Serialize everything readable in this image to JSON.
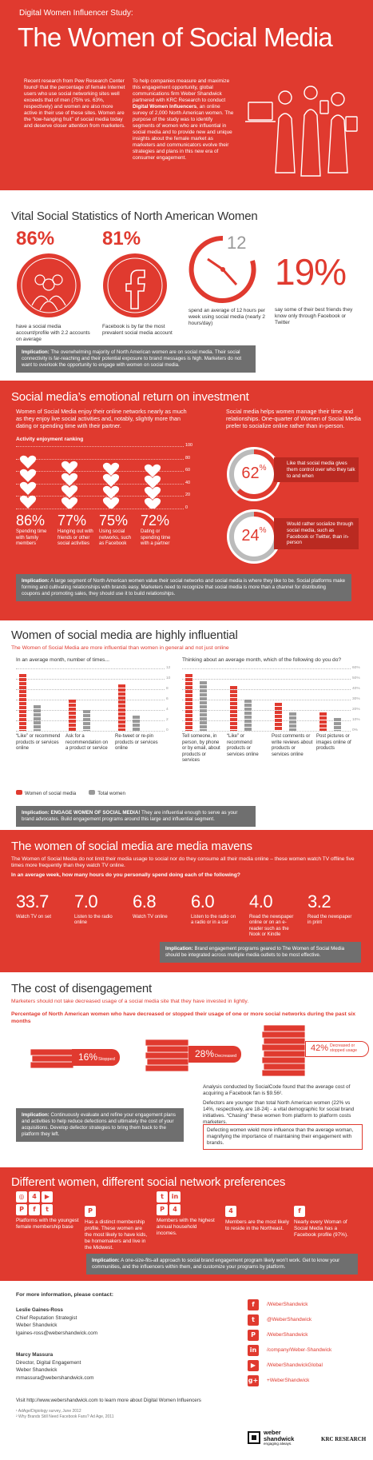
{
  "header": {
    "kicker": "Digital Women Influencer Study:",
    "title": "The Women of Social Media",
    "col1": "Recent research from Pew Research Center found¹ that the percentage of female Internet users who use social networking sites well exceeds that of men (75% vs. 63%, respectively) and women are also more active in their use of these sites. Women are the “low-hanging fruit” of social media today and deserve closer attention from marketers.",
    "col2a": "To help companies measure and maximize this engagement opportunity, global communications firm Weber Shandwick partnered with KRC Research to conduct ",
    "col2b": "Digital Women Influencers",
    "col2c": ", an online survey of 2,000 North American women. The purpose of the study was to identify segments of women who are influential in social media and to provide new and unique insights about the female market as marketers and communicators evolve their strategies and plans in this new era of consumer engagement."
  },
  "vital": {
    "title": "Vital Social Statistics of North American Women",
    "stat1": {
      "value": "86%",
      "text": "have a social media account/profile with 2.2 accounts on average"
    },
    "stat2": {
      "value": "81%",
      "text": "Facebook is by far the most prevalent social media account"
    },
    "stat3": {
      "value": "12",
      "text": "spend an average of 12 hours per week using social media (nearly 2 hours/day)"
    },
    "stat4": {
      "value": "19%",
      "text": "say some of their best friends they know only through Facebook or Twitter"
    },
    "implication_label": "Implication:",
    "implication": " The overwhelming majority of North American women are on social media. Their social connectivity is far-reaching and their potential exposure to brand messages is high. Marketers do not want to overlook the opportunity to engage with women on social media."
  },
  "roi": {
    "title": "Social media’s emotional return on investment",
    "left_text": "Women of Social Media enjoy their online networks nearly as much as they enjoy live social activities and, notably, slightly more than dating or spending time with their partner.",
    "chart_label": "Activity enjoyment ranking",
    "ticks": [
      "100",
      "80",
      "60",
      "40",
      "20",
      "0"
    ],
    "right_text": "Social media helps women manage their time and relationships. One-quarter of Women of Social Media prefer to socialize online rather than in-person.",
    "donut1": {
      "value": "62",
      "pct": "%",
      "text": "Like that social media gives them control over who they talk to and when"
    },
    "donut2": {
      "value": "24",
      "pct": "%",
      "text": "Would rather socialize through social media, such as Facebook or Twitter, than in-person"
    },
    "implication_label": "Implication:",
    "implication": " A large segment of North American women value their social networks and social media is where they like to be. Social platforms make forming and cultivating relationships with brands easy. Marketers need to recognize that social media is more than a channel for distributing coupons and promoting sales, they should use it to build relationships."
  },
  "influential": {
    "title": "Women of social media are highly influential",
    "subtitle": "The Women of Social Media are more influential than women in general and not just online",
    "left_q": "In an average month, number of times...",
    "right_q": "Thinking about an average month, which of the following do you do?",
    "left_ticks": [
      "12",
      "10",
      "8",
      "6",
      "4",
      "2",
      "0"
    ],
    "right_ticks": [
      "60%",
      "50%",
      "40%",
      "30%",
      "20%",
      "10%",
      "0%"
    ],
    "legend_wosm": "Women of social media",
    "legend_total": "Total women",
    "implication_label": "Implication: ENGAGE WOMEN OF SOCIAL MEDIA!",
    "implication": " They are influential enough to serve as your brand advocates. Build engagement programs around this large and influential segment."
  },
  "chart_data": [
    {
      "type": "bar",
      "series": [
        {
          "name": "Women of social media",
          "values": [
            86,
            77,
            75,
            72
          ]
        }
      ],
      "categories": [
        "Spending time with family members",
        "Hanging out with friends or other social activities",
        "Using social networks, such as Facebook",
        "Dating or spending time with a partner"
      ],
      "ylabel": "Activity enjoyment ranking",
      "ylim": [
        0,
        100
      ]
    },
    {
      "type": "bar",
      "categories": [
        "“Like” or recommend products or services online",
        "Ask for a recommendation on a product or service",
        "Re-tweet or re-pin products or services online"
      ],
      "series": [
        {
          "name": "Women of social media",
          "values": [
            11,
            6,
            9
          ]
        },
        {
          "name": "Total women",
          "values": [
            5,
            4,
            3
          ]
        }
      ],
      "ylim": [
        0,
        12
      ]
    },
    {
      "type": "bar",
      "categories": [
        "Tell someone, in person, by phone or by email, about products or services",
        "“Like” or recommend products or services online",
        "Post comments or write reviews about products or services online",
        "Post pictures or images online of products"
      ],
      "series": [
        {
          "name": "Women of social media",
          "values": [
            55,
            43,
            27,
            18
          ]
        },
        {
          "name": "Total women",
          "values": [
            48,
            30,
            18,
            12
          ]
        }
      ],
      "ylim": [
        0,
        60
      ]
    }
  ],
  "mavens": {
    "title": "The women of social media are media mavens",
    "subtitle": "The Women of Social Media do not limit their media usage to social nor do they consume all their media online – these women watch TV offline five times more frequently than they watch TV online.",
    "question": "In an average week, how many hours do you personally spend doing each of the following?",
    "items": [
      {
        "value": "33.7",
        "text": "Watch TV on set"
      },
      {
        "value": "7.0",
        "text": "Listen to the radio online"
      },
      {
        "value": "6.8",
        "text": "Watch TV online"
      },
      {
        "value": "6.0",
        "text": "Listen to the radio on a radio or in a car"
      },
      {
        "value": "4.0",
        "text": "Read the newspaper online or on an e-reader such as the Nook or Kindle"
      },
      {
        "value": "3.2",
        "text": "Read the newspaper in print"
      }
    ],
    "implication_label": "Implication:",
    "implication": " Brand engagement programs geared to The Women of Social Media should be integrated across multiple media outlets to be most effective."
  },
  "cost": {
    "title": "The cost of disengagement",
    "subtitle": "Marketers should not take decreased usage of a social media site that they have invested in lightly.",
    "question": "Percentage of North American women who have decreased or stopped their usage of one or more social networks during the past six months",
    "tag1": {
      "value": "16%",
      "label": "Stopped"
    },
    "tag2": {
      "value": "28%",
      "label": "Decreased"
    },
    "tag3": {
      "value": "42%",
      "label": "Decreased or stopped usage"
    },
    "analysis": "Analysis conducted by SocialCode found that the average cost of acquiring a Facebook fan is $9.56².",
    "defectors": "Defectors are younger than total North American women (22% vs 14%, respectively, are 18-24) - a vital demographic for social brand initiatives. “Chasing” these women from platform to platform costs marketers.",
    "quote": "Defecting women wield more influence than the average woman, magnifying the importance of maintaining their engagement with brands.",
    "implication_label": "Implication:",
    "implication": " Continuously evaluate and refine your engagement plans and activities to help reduce defections and ultimately the cost of your acquisitions. Develop defector strategies to bring them back to the platform they left."
  },
  "prefs": {
    "title": "Different women, different social network preferences",
    "items": [
      {
        "text": "Platforms with the youngest female membership base"
      },
      {
        "text": "Has a distinct membership profile. These women are the most likely to have kids, be homemakers and live in the Midwest."
      },
      {
        "text": "Members with the highest annual household incomes."
      },
      {
        "text": "Members are the most likely to reside in the Northeast."
      },
      {
        "text": "Nearly every Woman of Social Media has a Facebook profile (97%)."
      }
    ],
    "implication_label": "Implication:",
    "implication": " A one-size-fits-all approach to social brand engagement program likely won’t work. Get to know your communities, and the influencers within them, and customize your programs by platform."
  },
  "footer": {
    "contact_label": "For more information, please contact:",
    "person1_name": "Leslie Gaines-Ross",
    "person1_title": "Chief Reputation Strategist",
    "person1_company": "Weber Shandwick",
    "person1_email": "lgaines-ross@webershandwick.com",
    "person2_name": "Marcy Massura",
    "person2_title": "Director, Digital Engagement",
    "person2_company": "Weber Shandwick",
    "person2_email": "mmassura@webershandwick.com",
    "visit": "Visit http://www.webershandwick.com to learn more about Digital Women Influencers",
    "fn1": "¹ AdAge/Digiology survey, June 2012",
    "fn2": "² Why Brands Still Need Facebook Fans? Ad Age, 2011",
    "links": [
      "/WeberShandwick",
      "@WeberShandwick",
      "/WeberShandwick",
      "/company/Weber-Shandwick",
      "/WeberShandwickGlobal",
      "+WeberShandwick"
    ],
    "logo1": "weber shandwick",
    "tagline": "engaging always.",
    "logo2": "KRC RESEARCH"
  }
}
